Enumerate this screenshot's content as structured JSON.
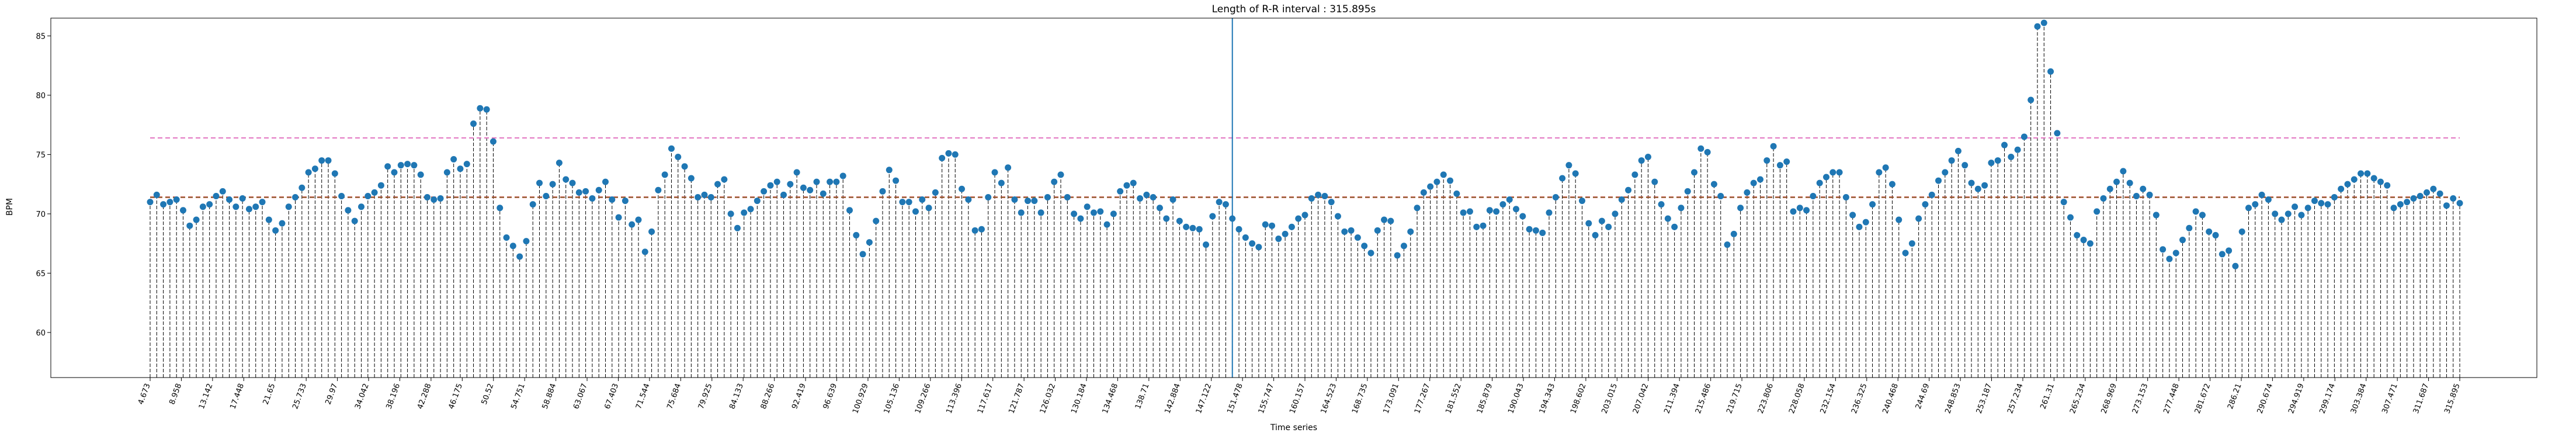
{
  "chart_data": {
    "type": "scatter",
    "title": "Length of R-R interval : 315.895s",
    "xlabel": "Time series",
    "ylabel": "BPM",
    "ylim": [
      56.2,
      86.5
    ],
    "yticks": [
      60,
      65,
      70,
      75,
      80,
      85
    ],
    "grid": false,
    "legend": "none",
    "x_tick_labels": [
      "4.673",
      "8.958",
      "13.142",
      "17.448",
      "21.65",
      "25.733",
      "29.97",
      "34.042",
      "38.196",
      "42.288",
      "46.175",
      "50.52",
      "54.751",
      "58.884",
      "63.067",
      "67.403",
      "71.544",
      "75.684",
      "79.925",
      "84.133",
      "88.266",
      "92.419",
      "96.639",
      "100.929",
      "105.136",
      "109.266",
      "113.396",
      "117.617",
      "121.787",
      "126.032",
      "130.184",
      "134.468",
      "138.71",
      "142.884",
      "147.122",
      "151.478",
      "155.747",
      "160.157",
      "164.523",
      "168.735",
      "173.091",
      "177.267",
      "181.552",
      "185.879",
      "190.043",
      "194.343",
      "198.602",
      "203.015",
      "207.042",
      "211.394",
      "215.486",
      "219.715",
      "223.806",
      "228.058",
      "232.154",
      "236.325",
      "240.468",
      "244.69",
      "248.853",
      "253.187",
      "257.234",
      "261.31",
      "265.234",
      "268.969",
      "273.153",
      "277.448",
      "281.672",
      "286.21",
      "290.674",
      "294.919",
      "299.174",
      "303.384",
      "307.471",
      "311.687",
      "315.895"
    ],
    "series": [
      {
        "values": [
          71.0,
          71.6,
          70.8,
          71.0,
          71.2,
          70.3,
          69.0,
          69.5,
          70.6,
          70.8,
          71.5,
          71.9,
          71.2,
          70.6,
          71.3,
          70.4,
          70.6,
          71.0,
          69.5,
          68.6,
          69.2,
          70.6,
          71.4,
          72.2,
          73.5,
          73.8,
          74.5,
          74.5,
          73.4,
          71.5,
          70.3,
          69.4,
          70.6,
          71.5,
          71.8,
          72.4,
          74.0,
          73.5,
          74.1,
          74.2,
          74.1,
          73.3,
          71.4,
          71.2,
          71.3,
          73.5,
          74.6,
          73.8,
          74.2,
          77.6,
          78.9,
          78.8,
          76.1,
          70.5,
          68.0,
          67.3,
          66.4,
          67.7,
          70.8,
          72.6,
          71.5,
          72.5,
          74.3,
          72.9,
          72.6,
          71.8,
          71.9,
          71.3,
          72.0,
          72.7,
          71.2,
          69.7,
          71.1,
          69.1,
          69.5,
          66.8,
          68.5,
          72.0,
          73.3,
          75.5,
          74.8,
          74.0,
          73.0,
          71.4,
          71.6,
          71.4,
          72.5,
          72.9,
          70.0,
          68.8,
          70.1,
          70.4,
          71.1,
          71.9,
          72.4,
          72.7,
          71.6,
          72.5,
          73.5,
          72.2,
          72.0,
          72.7,
          71.7,
          72.7,
          72.7,
          73.2,
          70.3,
          68.2,
          66.6,
          67.6,
          69.4,
          71.9,
          73.7,
          72.8,
          71.0,
          71.0,
          70.2,
          71.2,
          70.5,
          71.8,
          74.7,
          75.1,
          75.0,
          72.1,
          71.2,
          68.6,
          68.7,
          71.4,
          73.5,
          72.6,
          73.9,
          71.2,
          70.1,
          71.1,
          71.1,
          70.1,
          71.4,
          72.7,
          73.3,
          71.4,
          70.0,
          69.6,
          70.6,
          70.1,
          70.2,
          69.1,
          70.0,
          71.9,
          72.4,
          72.6,
          71.3,
          71.6,
          71.4,
          70.5,
          69.6,
          71.2,
          69.4,
          68.9,
          68.8,
          68.7,
          67.4,
          69.8,
          71.0,
          70.8,
          69.6,
          68.7,
          68.0,
          67.5,
          67.2,
          69.1,
          69.0,
          67.9,
          68.3,
          68.9,
          69.6,
          69.9,
          71.3,
          71.6,
          71.5,
          71.0,
          69.8,
          68.5,
          68.6,
          68.0,
          67.3,
          66.7,
          68.6,
          69.5,
          69.4,
          66.5,
          67.3,
          68.5,
          70.5,
          71.8,
          72.3,
          72.7,
          73.3,
          72.8,
          71.7,
          70.1,
          70.2,
          68.9,
          69.0,
          70.3,
          70.2,
          70.8,
          71.2,
          70.4,
          69.8,
          68.7,
          68.6,
          68.4,
          70.1,
          71.4,
          73.0,
          74.1,
          73.4,
          71.1,
          69.2,
          68.2,
          69.4,
          68.9,
          70.0,
          71.2,
          72.0,
          73.3,
          74.5,
          74.8,
          72.7,
          70.8,
          69.6,
          68.9,
          70.5,
          71.9,
          73.5,
          75.5,
          75.2,
          72.5,
          71.5,
          67.4,
          68.3,
          70.5,
          71.8,
          72.6,
          72.9,
          74.5,
          75.7,
          74.1,
          74.4,
          70.2,
          70.5,
          70.3,
          71.5,
          72.6,
          73.1,
          73.5,
          73.5,
          71.4,
          69.9,
          68.9,
          69.3,
          70.8,
          73.5,
          73.9,
          72.5,
          69.5,
          66.7,
          67.5,
          69.6,
          70.8,
          71.6,
          72.8,
          73.5,
          74.5,
          75.3,
          74.1,
          72.6,
          72.1,
          72.4,
          74.3,
          74.5,
          75.8,
          74.8,
          75.4,
          76.5,
          79.6,
          85.8,
          86.1,
          82.0,
          76.8,
          71.0,
          69.7,
          68.2,
          67.8,
          67.5,
          70.2,
          71.3,
          72.1,
          72.7,
          73.6,
          72.6,
          71.5,
          72.1,
          71.6,
          69.9,
          67.0,
          66.2,
          66.7,
          67.8,
          68.8,
          70.2,
          69.9,
          68.5,
          68.2,
          66.6,
          66.9,
          65.6,
          68.5,
          70.5,
          70.8,
          71.6,
          71.2,
          70.0,
          69.5,
          70.0,
          70.6,
          69.9,
          70.5,
          71.1,
          70.9,
          70.8,
          71.4,
          72.1,
          72.5,
          72.9,
          73.4,
          73.4,
          73.0,
          72.7,
          72.4,
          70.5,
          70.8,
          71.0,
          71.3,
          71.5,
          71.8,
          72.1,
          71.7,
          70.7,
          71.3,
          70.9
        ]
      }
    ],
    "mean_bpm": 71.4,
    "upper_limit_bpm": 76.4,
    "vertical_marker_index": 164,
    "colors": {
      "marker": "#1f77b4",
      "stem": "#000000",
      "mean_line": "#d62728",
      "mean_line_inner": "#2ca02c",
      "upper_line": "#e377c2",
      "vertical_marker": "#1f77b4"
    }
  }
}
